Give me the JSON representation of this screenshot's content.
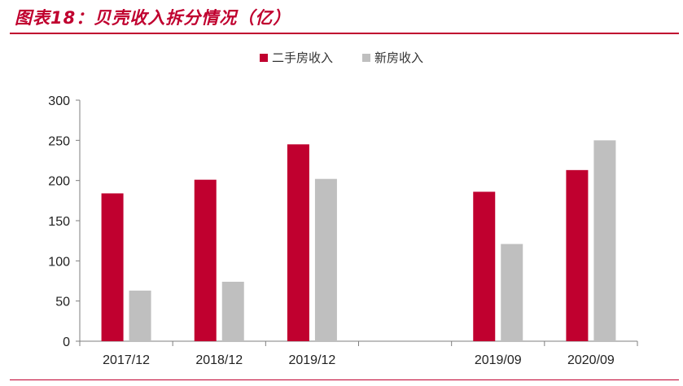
{
  "header": {
    "title": "图表18：贝壳收入拆分情况（亿）"
  },
  "chart_data": {
    "type": "bar",
    "title": "",
    "xlabel": "",
    "ylabel": "",
    "ylim": [
      0,
      300
    ],
    "yticks": [
      0,
      50,
      100,
      150,
      200,
      250,
      300
    ],
    "categories": [
      "2017/12",
      "2018/12",
      "2019/12",
      "",
      "2019/09",
      "2020/09"
    ],
    "series": [
      {
        "name": "二手房收入",
        "color": "#c0002f",
        "values": [
          184,
          201,
          245,
          null,
          186,
          213
        ]
      },
      {
        "name": "新房收入",
        "color": "#bfbfbf",
        "values": [
          63,
          74,
          202,
          null,
          121,
          250
        ]
      }
    ],
    "legend_position": "top-center",
    "grid": false
  }
}
